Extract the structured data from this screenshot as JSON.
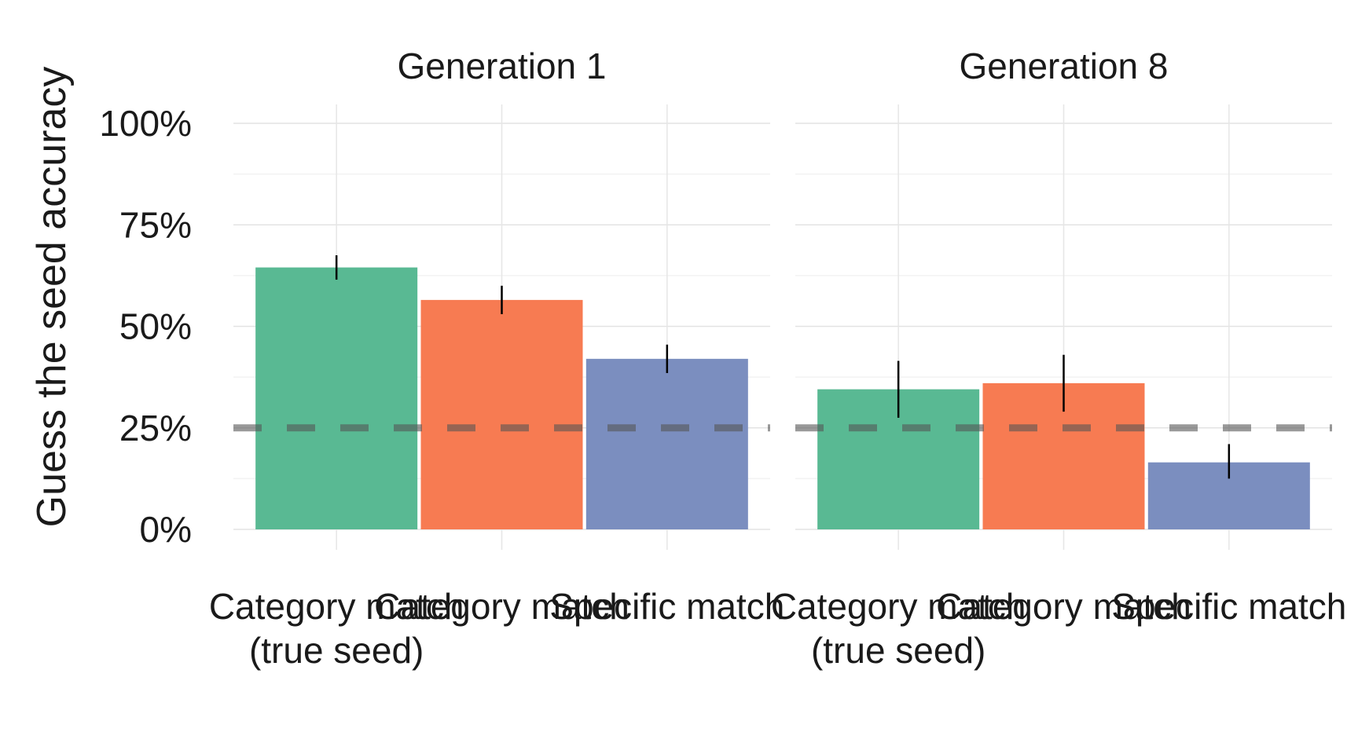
{
  "chart_data": {
    "type": "bar",
    "ylabel": "Guess the seed accuracy",
    "xlabel": "",
    "ylim": [
      0,
      1
    ],
    "yticks": [
      0,
      0.25,
      0.5,
      0.75,
      1.0
    ],
    "ytick_labels": [
      "0%",
      "25%",
      "50%",
      "75%",
      "100%"
    ],
    "grid": true,
    "reference_line": {
      "y": 0.25,
      "style": "dashed",
      "color": "#808080"
    },
    "categories": [
      "Category match\n(true seed)",
      "Category match",
      "Specific match"
    ],
    "colors": [
      "#59b993",
      "#f77b52",
      "#7b8ebf"
    ],
    "panels": [
      {
        "title": "Generation 1",
        "values": [
          0.645,
          0.565,
          0.42
        ],
        "error_low": [
          0.615,
          0.53,
          0.385
        ],
        "error_high": [
          0.675,
          0.6,
          0.455
        ]
      },
      {
        "title": "Generation 8",
        "values": [
          0.345,
          0.36,
          0.165
        ],
        "error_low": [
          0.275,
          0.29,
          0.125
        ],
        "error_high": [
          0.415,
          0.43,
          0.21
        ]
      }
    ]
  }
}
